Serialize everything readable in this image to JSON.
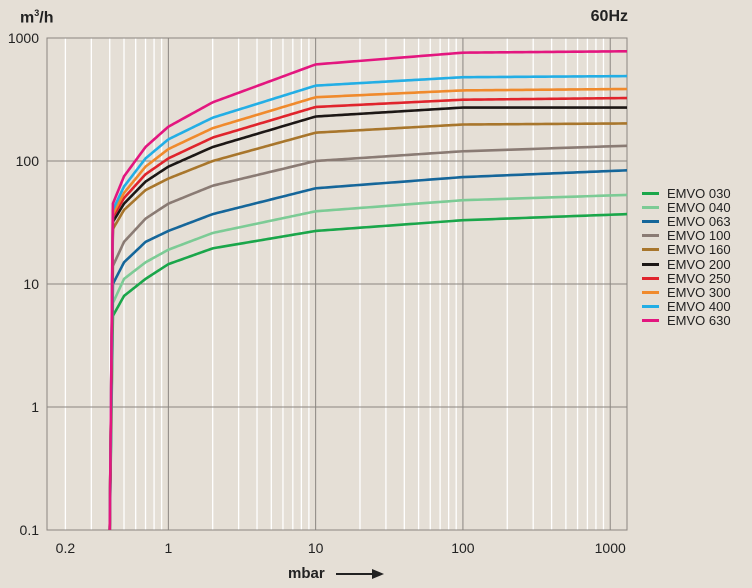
{
  "header": {
    "unit_base": "m",
    "unit_sup": "3",
    "unit_tail": "/h",
    "frequency": "60Hz"
  },
  "chart_data": {
    "type": "line",
    "title": "",
    "xlabel": "mbar",
    "ylabel": "m³/h",
    "xscale": "log",
    "yscale": "log",
    "xlim": [
      0.15,
      1300
    ],
    "ylim": [
      0.1,
      1000
    ],
    "xticks": [
      0.2,
      1,
      10,
      100,
      1000
    ],
    "xtick_labels": [
      "0.2",
      "1",
      "10",
      "100",
      "1000"
    ],
    "yticks": [
      0.1,
      1,
      10,
      100,
      1000
    ],
    "ytick_labels": [
      "0.1",
      "1",
      "10",
      "100",
      "1000"
    ],
    "grid": true,
    "legend_position": "right",
    "series": [
      {
        "name": "EMVO 030",
        "color": "#1aa64a",
        "points": [
          [
            0.4,
            0.1
          ],
          [
            0.42,
            5.5
          ],
          [
            0.5,
            8
          ],
          [
            0.7,
            11
          ],
          [
            1,
            14.5
          ],
          [
            2,
            19.5
          ],
          [
            10,
            27
          ],
          [
            100,
            33
          ],
          [
            1300,
            37
          ]
        ]
      },
      {
        "name": "EMVO 040",
        "color": "#7ccb95",
        "points": [
          [
            0.4,
            0.1
          ],
          [
            0.42,
            7
          ],
          [
            0.5,
            11
          ],
          [
            0.7,
            15
          ],
          [
            1,
            19
          ],
          [
            2,
            26
          ],
          [
            10,
            39
          ],
          [
            100,
            48
          ],
          [
            1300,
            53
          ]
        ]
      },
      {
        "name": "EMVO 063",
        "color": "#15669a",
        "points": [
          [
            0.4,
            0.1
          ],
          [
            0.42,
            10
          ],
          [
            0.5,
            15
          ],
          [
            0.7,
            22
          ],
          [
            1,
            27
          ],
          [
            2,
            37
          ],
          [
            10,
            60
          ],
          [
            100,
            74
          ],
          [
            1300,
            84
          ]
        ]
      },
      {
        "name": "EMVO 100",
        "color": "#8a7b74",
        "points": [
          [
            0.4,
            0.1
          ],
          [
            0.42,
            14
          ],
          [
            0.5,
            22
          ],
          [
            0.7,
            34
          ],
          [
            1,
            45
          ],
          [
            2,
            63
          ],
          [
            10,
            100
          ],
          [
            100,
            120
          ],
          [
            1300,
            133
          ]
        ]
      },
      {
        "name": "EMVO 160",
        "color": "#a8762c",
        "points": [
          [
            0.4,
            0.1
          ],
          [
            0.42,
            28
          ],
          [
            0.5,
            40
          ],
          [
            0.7,
            58
          ],
          [
            1,
            72
          ],
          [
            2,
            100
          ],
          [
            10,
            170
          ],
          [
            100,
            198
          ],
          [
            1300,
            202
          ]
        ]
      },
      {
        "name": "EMVO 200",
        "color": "#1c1715",
        "points": [
          [
            0.4,
            0.1
          ],
          [
            0.42,
            32
          ],
          [
            0.5,
            45
          ],
          [
            0.7,
            68
          ],
          [
            1,
            90
          ],
          [
            2,
            130
          ],
          [
            10,
            230
          ],
          [
            100,
            272
          ],
          [
            1300,
            272
          ]
        ]
      },
      {
        "name": "EMVO 250",
        "color": "#e0242c",
        "points": [
          [
            0.4,
            0.1
          ],
          [
            0.42,
            35
          ],
          [
            0.5,
            50
          ],
          [
            0.7,
            78
          ],
          [
            1,
            105
          ],
          [
            2,
            155
          ],
          [
            10,
            275
          ],
          [
            100,
            315
          ],
          [
            1300,
            325
          ]
        ]
      },
      {
        "name": "EMVO 300",
        "color": "#f08a2c",
        "points": [
          [
            0.4,
            0.1
          ],
          [
            0.42,
            37
          ],
          [
            0.5,
            55
          ],
          [
            0.7,
            90
          ],
          [
            1,
            125
          ],
          [
            2,
            185
          ],
          [
            10,
            330
          ],
          [
            100,
            375
          ],
          [
            1300,
            385
          ]
        ]
      },
      {
        "name": "EMVO 400",
        "color": "#23aee5",
        "points": [
          [
            0.4,
            0.1
          ],
          [
            0.42,
            40
          ],
          [
            0.5,
            62
          ],
          [
            0.7,
            105
          ],
          [
            1,
            150
          ],
          [
            2,
            225
          ],
          [
            10,
            410
          ],
          [
            100,
            480
          ],
          [
            1300,
            490
          ]
        ]
      },
      {
        "name": "EMVO 630",
        "color": "#e3167f",
        "points": [
          [
            0.4,
            0.1
          ],
          [
            0.42,
            45
          ],
          [
            0.5,
            75
          ],
          [
            0.7,
            130
          ],
          [
            1,
            190
          ],
          [
            2,
            300
          ],
          [
            10,
            610
          ],
          [
            100,
            760
          ],
          [
            1300,
            780
          ]
        ]
      }
    ]
  }
}
